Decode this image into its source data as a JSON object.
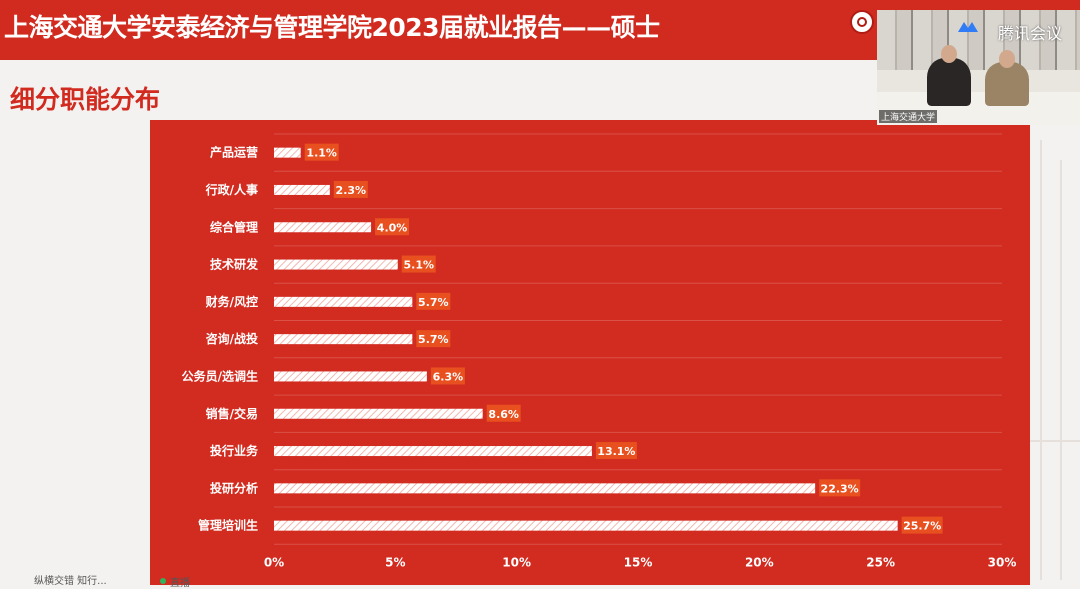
{
  "header": {
    "title": "上海交通大学安泰经济与管理学院2023届就业报告——硕士",
    "band_color": "#d12a1f"
  },
  "section": {
    "title": "细分职能分布"
  },
  "video": {
    "caption": "上海交通大学",
    "app_name": "腾讯会议",
    "app_icon": "meeting-logo-icon"
  },
  "footer": {
    "left_text": "纵横交错 知行...",
    "live_text": "直播"
  },
  "colors": {
    "panel": "#d22b20",
    "bar": "#ffffff",
    "label_bg": "#e8501f",
    "text": "#ffffff"
  },
  "chart_data": {
    "type": "bar",
    "orientation": "horizontal",
    "categories": [
      "产品运营",
      "行政/人事",
      "综合管理",
      "技术研发",
      "财务/风控",
      "咨询/战投",
      "公务员/选调生",
      "销售/交易",
      "投行业务",
      "投研分析",
      "管理培训生"
    ],
    "values": [
      1.1,
      2.3,
      4.0,
      5.1,
      5.7,
      5.7,
      6.3,
      8.6,
      13.1,
      22.3,
      25.7
    ],
    "value_labels": [
      "1.1%",
      "2.3%",
      "4.0%",
      "5.1%",
      "5.7%",
      "5.7%",
      "6.3%",
      "8.6%",
      "13.1%",
      "22.3%",
      "25.7%"
    ],
    "xlim": [
      0,
      30
    ],
    "xticks": [
      "0%",
      "5%",
      "10%",
      "15%",
      "20%",
      "25%",
      "30%"
    ],
    "grid": true,
    "legend": "none"
  }
}
